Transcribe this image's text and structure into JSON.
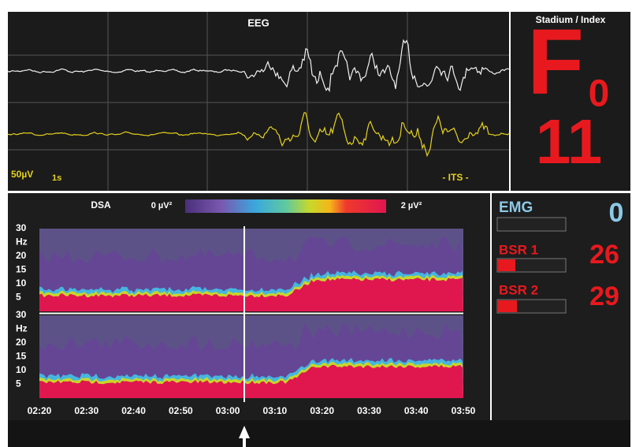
{
  "eeg": {
    "title": "EEG",
    "amplitude": "50µV",
    "time_scale": "1s",
    "mode": "- ITS -"
  },
  "index": {
    "title": "Stadium / Index",
    "stage": "F",
    "stage_sub": "0",
    "value": 11
  },
  "dsa": {
    "title": "DSA",
    "scale_min": "0 µV²",
    "scale_max": "2 µV²",
    "y_labels": [
      "30",
      "Hz",
      "20",
      "15",
      "10",
      "5"
    ],
    "time_labels": [
      "02:20",
      "02:30",
      "02:40",
      "02:50",
      "03:00",
      "03:10",
      "03:20",
      "03:30",
      "03:40",
      "03:50"
    ]
  },
  "emg": {
    "label": "EMG",
    "value": 0
  },
  "bsr": [
    {
      "label": "BSR 1",
      "value": 26
    },
    {
      "label": "BSR 2",
      "value": 29
    }
  ]
}
